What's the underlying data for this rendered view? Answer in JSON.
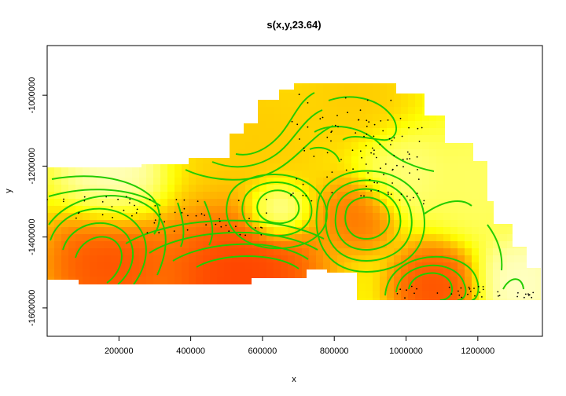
{
  "chart_data": {
    "type": "heatmap",
    "title": "s(x,y,23.64)",
    "xlabel": "x",
    "ylabel": "y",
    "xlim": [
      0,
      1380000
    ],
    "ylim": [
      -1680000,
      -860000
    ],
    "x_ticks": [
      200000,
      400000,
      600000,
      800000,
      1000000,
      1200000
    ],
    "x_tick_labels": [
      "200000",
      "400000",
      "600000",
      "800000",
      "1000000",
      "1200000"
    ],
    "y_ticks": [
      -1000000,
      -1200000,
      -1400000,
      -1600000
    ],
    "y_tick_labels": [
      "-1000000",
      "-1200000",
      "-1400000",
      "-1600000"
    ],
    "grid": false,
    "legend": "none",
    "colors": {
      "low": "#ff2a00",
      "mid": "#ffff00",
      "high": "#fffff0",
      "contour": "#22cc00",
      "points": "#000000",
      "axis": "#000000"
    },
    "heat_centers": [
      {
        "x": 540000,
        "y": -1520000,
        "value": 0.0,
        "r": 170000
      },
      {
        "x": 170000,
        "y": -1470000,
        "value": 0.05,
        "r": 130000
      },
      {
        "x": 870000,
        "y": -1330000,
        "value": 0.15,
        "r": 80000
      },
      {
        "x": 1080000,
        "y": -1540000,
        "value": 0.05,
        "r": 90000
      },
      {
        "x": 580000,
        "y": -1120000,
        "value": 0.4,
        "r": 160000
      },
      {
        "x": 860000,
        "y": -1010000,
        "value": 0.4,
        "r": 120000
      },
      {
        "x": 640000,
        "y": -1320000,
        "value": 1.0,
        "r": 60000
      },
      {
        "x": 180000,
        "y": -1240000,
        "value": 0.95,
        "r": 100000
      },
      {
        "x": 1320000,
        "y": -1530000,
        "value": 0.95,
        "r": 90000
      },
      {
        "x": 1200000,
        "y": -1250000,
        "value": 0.75,
        "r": 110000
      },
      {
        "x": 980000,
        "y": -1220000,
        "value": 0.8,
        "r": 90000
      }
    ]
  }
}
